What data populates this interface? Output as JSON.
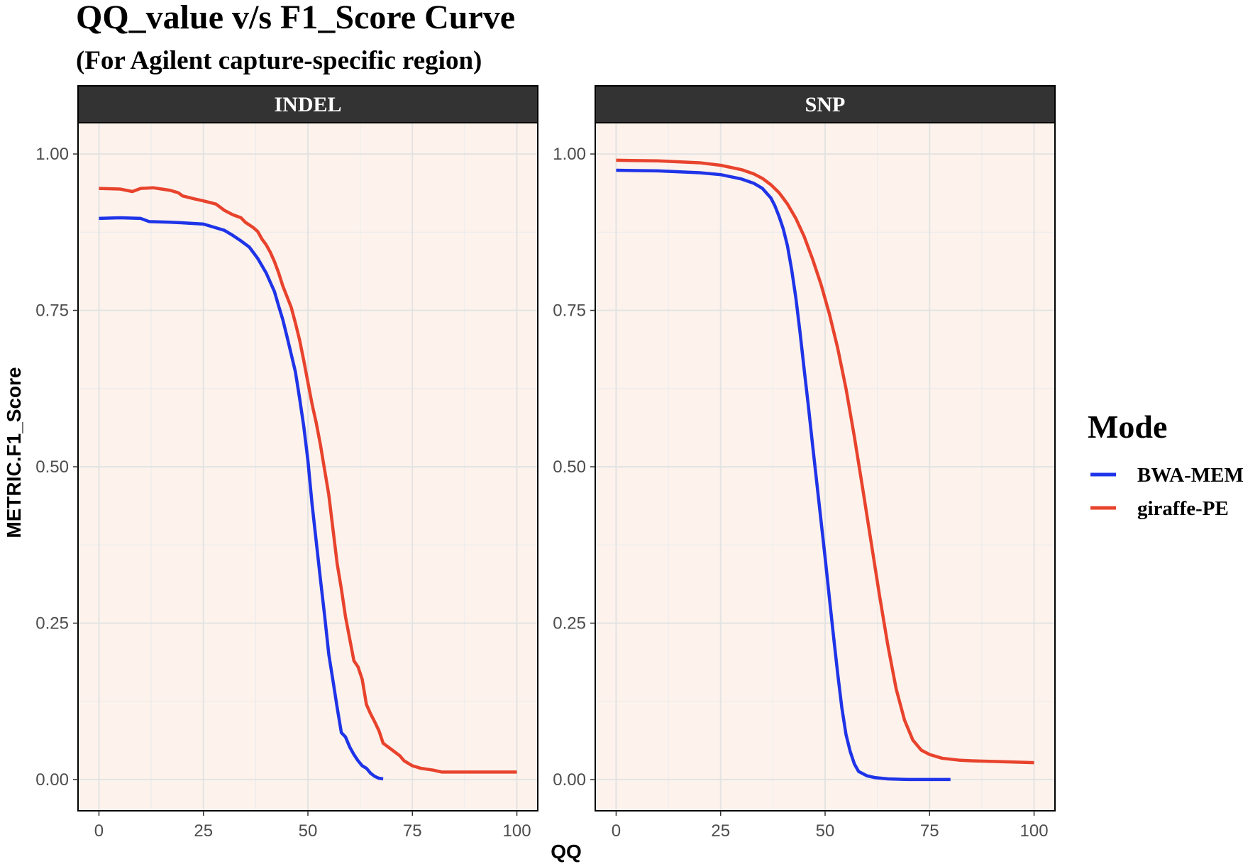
{
  "chart_data": {
    "type": "line",
    "title": "QQ_value v/s F1_Score Curve",
    "subtitle": "(For Agilent capture-specific region)",
    "xlabel": "QQ",
    "ylabel": "METRIC.F1_Score",
    "xlim": [
      -5,
      105
    ],
    "ylim": [
      -0.05,
      1.05
    ],
    "x_ticks": [
      0,
      25,
      50,
      75,
      100
    ],
    "x_tick_labels": [
      "0",
      "25",
      "50",
      "75",
      "100"
    ],
    "y_ticks": [
      0,
      0.25,
      0.5,
      0.75,
      1.0
    ],
    "y_tick_labels": [
      "0.00",
      "0.25",
      "0.50",
      "0.75",
      "1.00"
    ],
    "grid": true,
    "legend": {
      "title": "Mode",
      "position": "right",
      "entries": [
        {
          "name": "BWA-MEM",
          "color": "#1f34e8"
        },
        {
          "name": "giraffe-PE",
          "color": "#e8432d"
        }
      ]
    },
    "panel_background": "#fdf3ec",
    "strip_background": "#333333",
    "facets": [
      {
        "label": "INDEL",
        "series": [
          {
            "name": "BWA-MEM",
            "color": "#1f34e8",
            "points": [
              [
                0,
                0.897
              ],
              [
                5,
                0.898
              ],
              [
                10,
                0.897
              ],
              [
                12,
                0.892
              ],
              [
                17,
                0.891
              ],
              [
                20,
                0.89
              ],
              [
                25,
                0.888
              ],
              [
                27,
                0.884
              ],
              [
                30,
                0.878
              ],
              [
                32,
                0.87
              ],
              [
                34,
                0.861
              ],
              [
                36,
                0.851
              ],
              [
                38,
                0.833
              ],
              [
                40,
                0.81
              ],
              [
                41,
                0.795
              ],
              [
                42,
                0.78
              ],
              [
                43,
                0.757
              ],
              [
                44,
                0.735
              ],
              [
                45,
                0.708
              ],
              [
                46,
                0.68
              ],
              [
                47,
                0.652
              ],
              [
                48,
                0.61
              ],
              [
                49,
                0.565
              ],
              [
                50,
                0.51
              ],
              [
                51,
                0.44
              ],
              [
                52,
                0.38
              ],
              [
                53,
                0.32
              ],
              [
                54,
                0.262
              ],
              [
                55,
                0.2
              ],
              [
                56,
                0.158
              ],
              [
                57,
                0.115
              ],
              [
                58,
                0.075
              ],
              [
                59,
                0.068
              ],
              [
                60,
                0.052
              ],
              [
                61,
                0.04
              ],
              [
                62,
                0.03
              ],
              [
                63,
                0.022
              ],
              [
                64,
                0.018
              ],
              [
                65,
                0.01
              ],
              [
                66,
                0.005
              ],
              [
                67,
                0.002
              ],
              [
                68,
                0.001
              ]
            ]
          },
          {
            "name": "giraffe-PE",
            "color": "#e8432d",
            "points": [
              [
                0,
                0.945
              ],
              [
                5,
                0.944
              ],
              [
                8,
                0.94
              ],
              [
                10,
                0.945
              ],
              [
                13,
                0.946
              ],
              [
                15,
                0.944
              ],
              [
                17,
                0.942
              ],
              [
                19,
                0.938
              ],
              [
                20,
                0.933
              ],
              [
                23,
                0.928
              ],
              [
                25,
                0.925
              ],
              [
                28,
                0.92
              ],
              [
                30,
                0.91
              ],
              [
                32,
                0.903
              ],
              [
                34,
                0.898
              ],
              [
                35,
                0.891
              ],
              [
                37,
                0.882
              ],
              [
                38,
                0.876
              ],
              [
                39,
                0.864
              ],
              [
                40,
                0.855
              ],
              [
                41,
                0.843
              ],
              [
                42,
                0.828
              ],
              [
                43,
                0.81
              ],
              [
                44,
                0.789
              ],
              [
                45,
                0.772
              ],
              [
                46,
                0.755
              ],
              [
                47,
                0.73
              ],
              [
                48,
                0.703
              ],
              [
                49,
                0.67
              ],
              [
                50,
                0.635
              ],
              [
                51,
                0.6
              ],
              [
                52,
                0.57
              ],
              [
                53,
                0.535
              ],
              [
                54,
                0.495
              ],
              [
                55,
                0.455
              ],
              [
                56,
                0.4
              ],
              [
                57,
                0.345
              ],
              [
                58,
                0.305
              ],
              [
                59,
                0.26
              ],
              [
                60,
                0.225
              ],
              [
                61,
                0.19
              ],
              [
                62,
                0.18
              ],
              [
                63,
                0.16
              ],
              [
                64,
                0.12
              ],
              [
                65,
                0.105
              ],
              [
                66,
                0.092
              ],
              [
                67,
                0.078
              ],
              [
                68,
                0.058
              ],
              [
                70,
                0.048
              ],
              [
                72,
                0.038
              ],
              [
                73,
                0.03
              ],
              [
                75,
                0.022
              ],
              [
                77,
                0.018
              ],
              [
                80,
                0.015
              ],
              [
                82,
                0.012
              ],
              [
                100,
                0.012
              ]
            ]
          }
        ]
      },
      {
        "label": "SNP",
        "series": [
          {
            "name": "BWA-MEM",
            "color": "#1f34e8",
            "points": [
              [
                0,
                0.974
              ],
              [
                10,
                0.973
              ],
              [
                20,
                0.97
              ],
              [
                25,
                0.967
              ],
              [
                30,
                0.96
              ],
              [
                33,
                0.953
              ],
              [
                35,
                0.945
              ],
              [
                37,
                0.93
              ],
              [
                38,
                0.917
              ],
              [
                39,
                0.9
              ],
              [
                40,
                0.88
              ],
              [
                41,
                0.853
              ],
              [
                42,
                0.815
              ],
              [
                43,
                0.77
              ],
              [
                44,
                0.715
              ],
              [
                45,
                0.655
              ],
              [
                46,
                0.597
              ],
              [
                47,
                0.535
              ],
              [
                48,
                0.475
              ],
              [
                49,
                0.415
              ],
              [
                50,
                0.355
              ],
              [
                51,
                0.292
              ],
              [
                52,
                0.23
              ],
              [
                53,
                0.17
              ],
              [
                54,
                0.115
              ],
              [
                55,
                0.072
              ],
              [
                56,
                0.045
              ],
              [
                57,
                0.025
              ],
              [
                58,
                0.013
              ],
              [
                60,
                0.006
              ],
              [
                62,
                0.003
              ],
              [
                65,
                0.001
              ],
              [
                70,
                0.0
              ],
              [
                80,
                0.0
              ]
            ]
          },
          {
            "name": "giraffe-PE",
            "color": "#e8432d",
            "points": [
              [
                0,
                0.99
              ],
              [
                10,
                0.989
              ],
              [
                20,
                0.986
              ],
              [
                25,
                0.982
              ],
              [
                30,
                0.975
              ],
              [
                33,
                0.968
              ],
              [
                35,
                0.961
              ],
              [
                37,
                0.951
              ],
              [
                39,
                0.938
              ],
              [
                41,
                0.92
              ],
              [
                43,
                0.897
              ],
              [
                45,
                0.868
              ],
              [
                47,
                0.832
              ],
              [
                49,
                0.792
              ],
              [
                51,
                0.745
              ],
              [
                53,
                0.69
              ],
              [
                55,
                0.625
              ],
              [
                57,
                0.548
              ],
              [
                59,
                0.465
              ],
              [
                61,
                0.38
              ],
              [
                63,
                0.295
              ],
              [
                65,
                0.215
              ],
              [
                67,
                0.145
              ],
              [
                69,
                0.095
              ],
              [
                71,
                0.063
              ],
              [
                73,
                0.047
              ],
              [
                75,
                0.04
              ],
              [
                78,
                0.034
              ],
              [
                82,
                0.031
              ],
              [
                85,
                0.03
              ],
              [
                90,
                0.029
              ],
              [
                95,
                0.028
              ],
              [
                100,
                0.027
              ]
            ]
          }
        ]
      }
    ]
  }
}
